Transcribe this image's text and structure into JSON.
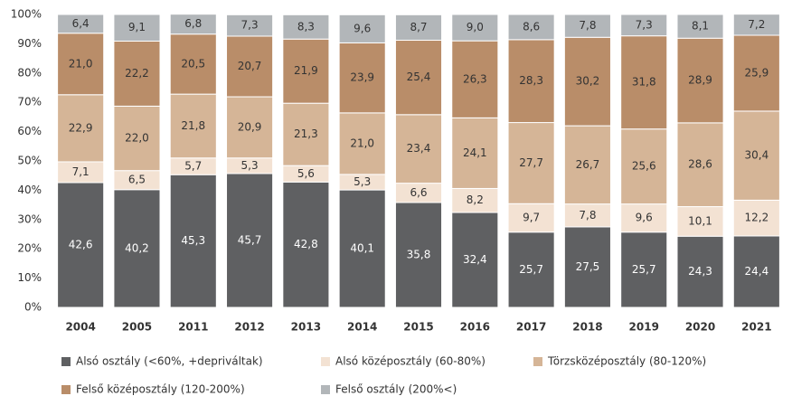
{
  "chart_data": {
    "type": "stacked_bar",
    "categories": [
      "2004",
      "2005",
      "2011",
      "2012",
      "2013",
      "2014",
      "2015",
      "2016",
      "2017",
      "2018",
      "2019",
      "2020",
      "2021"
    ],
    "series": [
      {
        "name": "Alsó osztály (<60%, +depriváltak)",
        "color": "#5f6062",
        "values": [
          42.6,
          40.2,
          45.3,
          45.7,
          42.8,
          40.1,
          35.8,
          32.4,
          25.7,
          27.5,
          25.7,
          24.3,
          24.4
        ],
        "value_labels": [
          "42,6",
          "40,2",
          "45,3",
          "45,7",
          "42,8",
          "40,1",
          "35,8",
          "32,4",
          "25,7",
          "27,5",
          "25,7",
          "24,3",
          "24,4"
        ]
      },
      {
        "name": "Alsó középosztály (60-80%)",
        "color": "#f3e2d3",
        "values": [
          7.1,
          6.5,
          5.7,
          5.3,
          5.6,
          5.3,
          6.6,
          8.2,
          9.7,
          7.8,
          9.6,
          10.1,
          12.2
        ],
        "value_labels": [
          "7,1",
          "6,5",
          "5,7",
          "5,3",
          "5,6",
          "5,3",
          "6,6",
          "8,2",
          "9,7",
          "7,8",
          "9,6",
          "10,1",
          "12,2"
        ]
      },
      {
        "name": "Törzsközéposztály (80-120%)",
        "color": "#d5b597",
        "values": [
          22.9,
          22.0,
          21.8,
          20.9,
          21.3,
          21.0,
          23.4,
          24.1,
          27.7,
          26.7,
          25.6,
          28.6,
          30.4
        ],
        "value_labels": [
          "22,9",
          "22,0",
          "21,8",
          "20,9",
          "21,3",
          "21,0",
          "23,4",
          "24,1",
          "27,7",
          "26,7",
          "25,6",
          "28,6",
          "30,4"
        ]
      },
      {
        "name": "Felső középosztály (120-200%)",
        "color": "#b98d69",
        "values": [
          21.0,
          22.2,
          20.5,
          20.7,
          21.9,
          23.9,
          25.4,
          26.3,
          28.3,
          30.2,
          31.8,
          28.9,
          25.9
        ],
        "value_labels": [
          "21,0",
          "22,2",
          "20,5",
          "20,7",
          "21,9",
          "23,9",
          "25,4",
          "26,3",
          "28,3",
          "30,2",
          "31,8",
          "28,9",
          "25,9"
        ]
      },
      {
        "name": "Felső osztály (200%<)",
        "color": "#b2b6b9",
        "values": [
          6.4,
          9.1,
          6.8,
          7.3,
          8.3,
          9.6,
          8.7,
          9.0,
          8.6,
          7.8,
          7.3,
          8.1,
          7.2
        ],
        "value_labels": [
          "6,4",
          "9,1",
          "6,8",
          "7,3",
          "8,3",
          "9,6",
          "8,7",
          "9,0",
          "8,6",
          "7,8",
          "7,3",
          "8,1",
          "7,2"
        ]
      }
    ],
    "ylim": [
      0,
      100
    ],
    "yticks": [
      {
        "value": 0,
        "label": "0%"
      },
      {
        "value": 10,
        "label": "10%"
      },
      {
        "value": 20,
        "label": "20%"
      },
      {
        "value": 30,
        "label": "30%"
      },
      {
        "value": 40,
        "label": "40%"
      },
      {
        "value": 50,
        "label": "50%"
      },
      {
        "value": 60,
        "label": "60%"
      },
      {
        "value": 70,
        "label": "70%"
      },
      {
        "value": 80,
        "label": "80%"
      },
      {
        "value": 90,
        "label": "90%"
      },
      {
        "value": 100,
        "label": "100%"
      }
    ]
  }
}
